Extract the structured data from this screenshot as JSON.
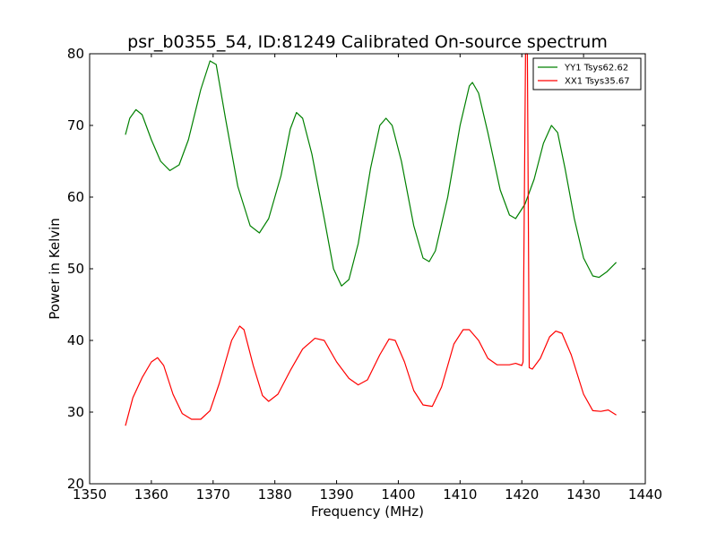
{
  "chart_data": {
    "type": "line",
    "title": "psr_b0355_54, ID:81249 Calibrated On-source spectrum",
    "xlabel": "Frequency (MHz)",
    "ylabel": "Power in Kelvin",
    "xlim": [
      1350,
      1440
    ],
    "ylim": [
      20,
      80
    ],
    "xticks": [
      "1350",
      "1360",
      "1370",
      "1380",
      "1390",
      "1400",
      "1410",
      "1420",
      "1430",
      "1440"
    ],
    "yticks": [
      "20",
      "30",
      "40",
      "50",
      "60",
      "70",
      "80"
    ],
    "grid": false,
    "legend_position": "top-right",
    "series": [
      {
        "name": "YY1 Tsys62.62",
        "color": "#008000",
        "points": [
          [
            1355.8,
            68.7
          ],
          [
            1356.5,
            71.0
          ],
          [
            1357.5,
            72.2
          ],
          [
            1358.5,
            71.5
          ],
          [
            1360.0,
            68.0
          ],
          [
            1361.5,
            65.0
          ],
          [
            1363.0,
            63.7
          ],
          [
            1364.5,
            64.5
          ],
          [
            1366.0,
            68.0
          ],
          [
            1368.0,
            75.0
          ],
          [
            1369.5,
            79.0
          ],
          [
            1370.5,
            78.5
          ],
          [
            1372.0,
            71.0
          ],
          [
            1374.0,
            61.5
          ],
          [
            1376.0,
            56.0
          ],
          [
            1377.5,
            55.0
          ],
          [
            1379.0,
            57.0
          ],
          [
            1381.0,
            63.0
          ],
          [
            1382.5,
            69.5
          ],
          [
            1383.5,
            71.8
          ],
          [
            1384.5,
            71.0
          ],
          [
            1386.0,
            66.0
          ],
          [
            1388.0,
            57.0
          ],
          [
            1389.5,
            50.0
          ],
          [
            1390.8,
            47.6
          ],
          [
            1392.0,
            48.5
          ],
          [
            1393.5,
            53.5
          ],
          [
            1395.5,
            64.0
          ],
          [
            1397.0,
            70.0
          ],
          [
            1398.0,
            71.0
          ],
          [
            1399.0,
            70.0
          ],
          [
            1400.5,
            65.0
          ],
          [
            1402.5,
            56.0
          ],
          [
            1404.0,
            51.5
          ],
          [
            1405.0,
            51.0
          ],
          [
            1406.0,
            52.5
          ],
          [
            1408.0,
            60.0
          ],
          [
            1410.0,
            70.0
          ],
          [
            1411.5,
            75.5
          ],
          [
            1412.0,
            76.0
          ],
          [
            1413.0,
            74.5
          ],
          [
            1414.5,
            69.0
          ],
          [
            1416.5,
            61.0
          ],
          [
            1418.0,
            57.5
          ],
          [
            1419.0,
            57.0
          ],
          [
            1420.5,
            59.0
          ],
          [
            1422.0,
            62.5
          ],
          [
            1423.5,
            67.5
          ],
          [
            1424.8,
            70.0
          ],
          [
            1425.8,
            69.0
          ],
          [
            1427.0,
            64.0
          ],
          [
            1428.5,
            57.0
          ],
          [
            1430.0,
            51.5
          ],
          [
            1431.5,
            49.0
          ],
          [
            1432.5,
            48.8
          ],
          [
            1433.8,
            49.6
          ],
          [
            1435.3,
            50.9
          ]
        ]
      },
      {
        "name": "XX1 Tsys35.67",
        "color": "#ff0000",
        "points": [
          [
            1355.8,
            28.1
          ],
          [
            1357.0,
            32.0
          ],
          [
            1358.5,
            34.8
          ],
          [
            1360.0,
            37.0
          ],
          [
            1361.0,
            37.6
          ],
          [
            1362.0,
            36.5
          ],
          [
            1363.5,
            32.5
          ],
          [
            1365.0,
            29.8
          ],
          [
            1366.5,
            29.0
          ],
          [
            1368.0,
            29.0
          ],
          [
            1369.5,
            30.2
          ],
          [
            1371.0,
            34.0
          ],
          [
            1373.0,
            40.0
          ],
          [
            1374.3,
            42.0
          ],
          [
            1375.0,
            41.5
          ],
          [
            1376.5,
            36.5
          ],
          [
            1378.0,
            32.3
          ],
          [
            1379.0,
            31.5
          ],
          [
            1380.5,
            32.5
          ],
          [
            1382.5,
            35.8
          ],
          [
            1384.5,
            38.8
          ],
          [
            1386.5,
            40.3
          ],
          [
            1388.0,
            40.0
          ],
          [
            1390.0,
            37.0
          ],
          [
            1392.0,
            34.7
          ],
          [
            1393.5,
            33.8
          ],
          [
            1395.0,
            34.5
          ],
          [
            1397.0,
            38.0
          ],
          [
            1398.5,
            40.2
          ],
          [
            1399.5,
            40.0
          ],
          [
            1401.0,
            37.0
          ],
          [
            1402.5,
            33.0
          ],
          [
            1404.0,
            31.0
          ],
          [
            1405.5,
            30.8
          ],
          [
            1407.0,
            33.5
          ],
          [
            1409.0,
            39.5
          ],
          [
            1410.5,
            41.5
          ],
          [
            1411.5,
            41.5
          ],
          [
            1413.0,
            40.0
          ],
          [
            1414.5,
            37.5
          ],
          [
            1416.0,
            36.6
          ],
          [
            1418.0,
            36.6
          ],
          [
            1419.0,
            36.8
          ],
          [
            1420.0,
            36.5
          ],
          [
            1420.2,
            37.0
          ],
          [
            1420.6,
            80.0
          ],
          [
            1420.9,
            80.0
          ],
          [
            1421.2,
            36.2
          ],
          [
            1421.7,
            36.0
          ],
          [
            1423.0,
            37.5
          ],
          [
            1424.5,
            40.5
          ],
          [
            1425.5,
            41.3
          ],
          [
            1426.5,
            41.0
          ],
          [
            1428.0,
            38.0
          ],
          [
            1430.0,
            32.5
          ],
          [
            1431.5,
            30.2
          ],
          [
            1432.8,
            30.1
          ],
          [
            1434.0,
            30.3
          ],
          [
            1435.3,
            29.6
          ]
        ]
      }
    ]
  }
}
